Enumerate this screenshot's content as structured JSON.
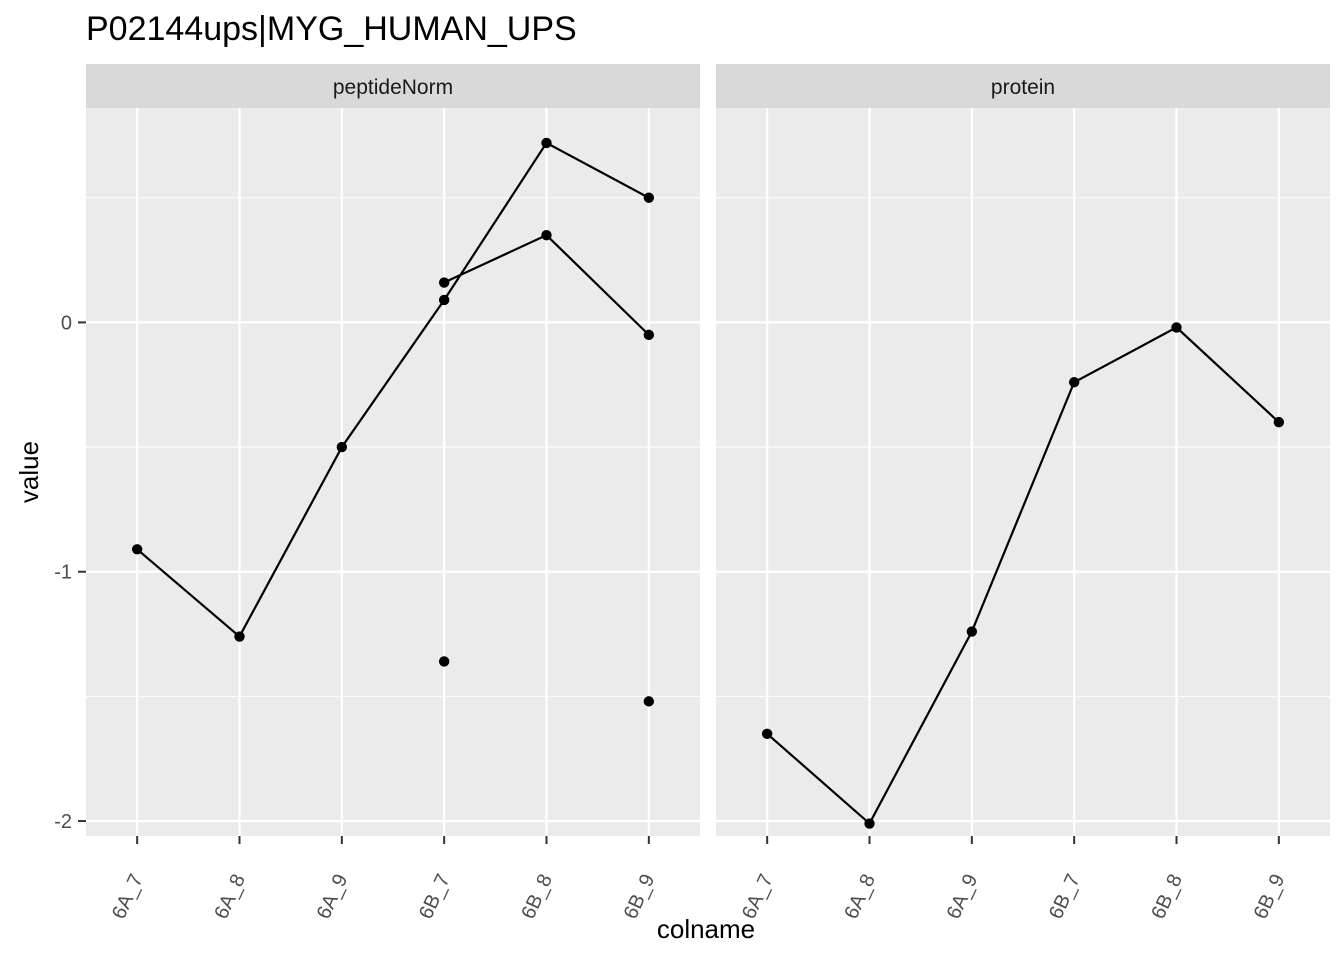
{
  "chart_data": {
    "type": "line",
    "title": "P02144ups|MYG_HUMAN_UPS",
    "xlabel": "colname",
    "ylabel": "value",
    "categories": [
      "6A_7",
      "6A_8",
      "6A_9",
      "6B_7",
      "6B_8",
      "6B_9"
    ],
    "ylim": [
      -2.06,
      0.86
    ],
    "yticks": [
      0,
      -1,
      -2
    ],
    "grid": true,
    "legend": "none",
    "colors": {
      "panel_bg": "#EBEBEB",
      "strip_bg": "#D9D9D9",
      "grid": "#FFFFFF",
      "line": "#000000",
      "point": "#000000",
      "tick_text": "#4D4D4D"
    },
    "facets": [
      {
        "label": "peptideNorm",
        "lines": [
          {
            "values": [
              -0.91,
              -1.26,
              -0.5,
              0.09,
              0.72,
              0.5
            ]
          },
          {
            "values": [
              null,
              null,
              null,
              0.16,
              0.35,
              -0.05
            ]
          }
        ],
        "points": [
          {
            "x": "6B_7",
            "y": -1.36
          },
          {
            "x": "6B_9",
            "y": -1.52
          }
        ]
      },
      {
        "label": "protein",
        "lines": [
          {
            "values": [
              -1.65,
              -2.01,
              -1.24,
              -0.24,
              -0.02,
              -0.4
            ]
          }
        ],
        "points": []
      }
    ]
  }
}
